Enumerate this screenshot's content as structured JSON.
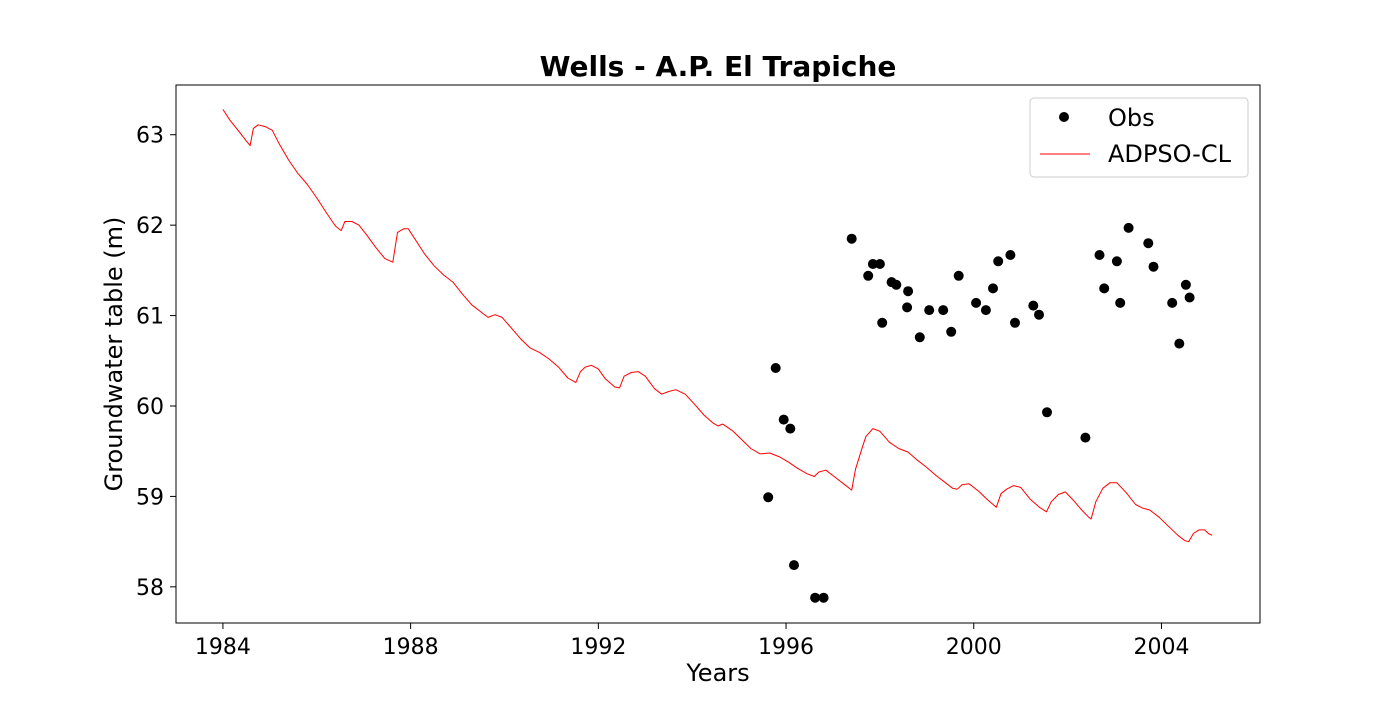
{
  "chart_data": {
    "type": "line",
    "title": "Wells - A.P. El Trapiche",
    "xlabel": "Years",
    "ylabel": "Groundwater table (m)",
    "xlim": [
      1983.0,
      2006.1
    ],
    "ylim": [
      57.6,
      63.55
    ],
    "x_ticks": [
      1984,
      1988,
      1992,
      1996,
      2000,
      2004
    ],
    "x_tick_labels": [
      "1984",
      "1988",
      "1992",
      "1996",
      "2000",
      "2004"
    ],
    "y_ticks": [
      58,
      59,
      60,
      61,
      62,
      63
    ],
    "y_tick_labels": [
      "58",
      "59",
      "60",
      "61",
      "62",
      "63"
    ],
    "legend": {
      "position": "upper right",
      "entries": [
        "Obs",
        "ADPSO-CL"
      ]
    },
    "colors": {
      "obs": "#000000",
      "sim": "#ff0000"
    },
    "grid": false,
    "series": [
      {
        "name": "Obs",
        "kind": "scatter",
        "points": [
          [
            1995.62,
            58.99
          ],
          [
            1995.78,
            60.42
          ],
          [
            1995.95,
            59.85
          ],
          [
            1996.09,
            59.75
          ],
          [
            1996.17,
            58.24
          ],
          [
            1996.62,
            57.88
          ],
          [
            1996.8,
            57.88
          ],
          [
            1997.4,
            61.85
          ],
          [
            1997.75,
            61.44
          ],
          [
            1997.85,
            61.57
          ],
          [
            1998.0,
            61.57
          ],
          [
            1998.05,
            60.92
          ],
          [
            1998.25,
            61.37
          ],
          [
            1998.35,
            61.34
          ],
          [
            1998.58,
            61.09
          ],
          [
            1998.6,
            61.27
          ],
          [
            1998.85,
            60.76
          ],
          [
            1999.05,
            61.06
          ],
          [
            1999.35,
            61.06
          ],
          [
            1999.52,
            60.82
          ],
          [
            1999.68,
            61.44
          ],
          [
            2000.05,
            61.14
          ],
          [
            2000.26,
            61.06
          ],
          [
            2000.41,
            61.3
          ],
          [
            2000.52,
            61.6
          ],
          [
            2000.78,
            61.67
          ],
          [
            2000.88,
            60.92
          ],
          [
            2001.27,
            61.11
          ],
          [
            2001.39,
            61.01
          ],
          [
            2001.56,
            59.93
          ],
          [
            2002.38,
            59.65
          ],
          [
            2002.68,
            61.67
          ],
          [
            2002.78,
            61.3
          ],
          [
            2003.05,
            61.6
          ],
          [
            2003.12,
            61.14
          ],
          [
            2003.3,
            61.97
          ],
          [
            2003.72,
            61.8
          ],
          [
            2003.83,
            61.54
          ],
          [
            2004.23,
            61.14
          ],
          [
            2004.38,
            60.69
          ],
          [
            2004.52,
            61.34
          ],
          [
            2004.6,
            61.2
          ]
        ]
      },
      {
        "name": "ADPSO-CL",
        "kind": "line",
        "points": [
          [
            1984.0,
            63.28
          ],
          [
            1984.15,
            63.16
          ],
          [
            1984.35,
            63.03
          ],
          [
            1984.5,
            62.93
          ],
          [
            1984.58,
            62.88
          ],
          [
            1984.65,
            63.07
          ],
          [
            1984.75,
            63.11
          ],
          [
            1984.9,
            63.09
          ],
          [
            1985.05,
            63.05
          ],
          [
            1985.2,
            62.9
          ],
          [
            1985.4,
            62.72
          ],
          [
            1985.6,
            62.57
          ],
          [
            1985.8,
            62.45
          ],
          [
            1986.0,
            62.3
          ],
          [
            1986.2,
            62.14
          ],
          [
            1986.4,
            61.99
          ],
          [
            1986.52,
            61.94
          ],
          [
            1986.6,
            62.04
          ],
          [
            1986.75,
            62.04
          ],
          [
            1986.9,
            62.0
          ],
          [
            1987.05,
            61.9
          ],
          [
            1987.25,
            61.76
          ],
          [
            1987.45,
            61.63
          ],
          [
            1987.62,
            61.59
          ],
          [
            1987.72,
            61.92
          ],
          [
            1987.85,
            61.96
          ],
          [
            1987.95,
            61.96
          ],
          [
            1988.1,
            61.84
          ],
          [
            1988.3,
            61.68
          ],
          [
            1988.5,
            61.55
          ],
          [
            1988.7,
            61.45
          ],
          [
            1988.9,
            61.37
          ],
          [
            1989.1,
            61.24
          ],
          [
            1989.3,
            61.12
          ],
          [
            1989.5,
            61.04
          ],
          [
            1989.65,
            60.98
          ],
          [
            1989.8,
            61.01
          ],
          [
            1989.95,
            60.98
          ],
          [
            1990.15,
            60.86
          ],
          [
            1990.35,
            60.74
          ],
          [
            1990.55,
            60.64
          ],
          [
            1990.75,
            60.59
          ],
          [
            1990.95,
            60.52
          ],
          [
            1991.15,
            60.43
          ],
          [
            1991.35,
            60.31
          ],
          [
            1991.52,
            60.26
          ],
          [
            1991.62,
            60.38
          ],
          [
            1991.72,
            60.43
          ],
          [
            1991.85,
            60.45
          ],
          [
            1992.0,
            60.41
          ],
          [
            1992.15,
            60.3
          ],
          [
            1992.35,
            60.21
          ],
          [
            1992.45,
            60.2
          ],
          [
            1992.55,
            60.33
          ],
          [
            1992.7,
            60.37
          ],
          [
            1992.85,
            60.38
          ],
          [
            1993.0,
            60.33
          ],
          [
            1993.2,
            60.19
          ],
          [
            1993.35,
            60.13
          ],
          [
            1993.5,
            60.16
          ],
          [
            1993.65,
            60.18
          ],
          [
            1993.85,
            60.13
          ],
          [
            1994.05,
            60.02
          ],
          [
            1994.25,
            59.9
          ],
          [
            1994.45,
            59.81
          ],
          [
            1994.55,
            59.78
          ],
          [
            1994.65,
            59.8
          ],
          [
            1994.85,
            59.73
          ],
          [
            1995.05,
            59.63
          ],
          [
            1995.25,
            59.53
          ],
          [
            1995.45,
            59.47
          ],
          [
            1995.65,
            59.48
          ],
          [
            1995.85,
            59.44
          ],
          [
            1996.05,
            59.38
          ],
          [
            1996.25,
            59.31
          ],
          [
            1996.45,
            59.25
          ],
          [
            1996.6,
            59.22
          ],
          [
            1996.7,
            59.27
          ],
          [
            1996.85,
            59.29
          ],
          [
            1997.05,
            59.21
          ],
          [
            1997.25,
            59.13
          ],
          [
            1997.4,
            59.07
          ],
          [
            1997.48,
            59.3
          ],
          [
            1997.6,
            59.5
          ],
          [
            1997.7,
            59.66
          ],
          [
            1997.85,
            59.75
          ],
          [
            1998.0,
            59.72
          ],
          [
            1998.2,
            59.6
          ],
          [
            1998.4,
            59.53
          ],
          [
            1998.6,
            59.49
          ],
          [
            1998.8,
            59.4
          ],
          [
            1999.0,
            59.32
          ],
          [
            1999.2,
            59.23
          ],
          [
            1999.4,
            59.15
          ],
          [
            1999.55,
            59.09
          ],
          [
            1999.65,
            59.08
          ],
          [
            1999.75,
            59.13
          ],
          [
            1999.9,
            59.14
          ],
          [
            2000.1,
            59.06
          ],
          [
            2000.3,
            58.96
          ],
          [
            2000.48,
            58.88
          ],
          [
            2000.58,
            59.03
          ],
          [
            2000.7,
            59.08
          ],
          [
            2000.85,
            59.12
          ],
          [
            2001.0,
            59.1
          ],
          [
            2001.2,
            58.97
          ],
          [
            2001.4,
            58.88
          ],
          [
            2001.55,
            58.83
          ],
          [
            2001.65,
            58.94
          ],
          [
            2001.8,
            59.02
          ],
          [
            2001.95,
            59.05
          ],
          [
            2002.1,
            58.97
          ],
          [
            2002.3,
            58.85
          ],
          [
            2002.45,
            58.77
          ],
          [
            2002.5,
            58.75
          ],
          [
            2002.6,
            58.94
          ],
          [
            2002.75,
            59.09
          ],
          [
            2002.9,
            59.15
          ],
          [
            2003.05,
            59.15
          ],
          [
            2003.25,
            59.04
          ],
          [
            2003.45,
            58.91
          ],
          [
            2003.6,
            58.87
          ],
          [
            2003.75,
            58.85
          ],
          [
            2003.95,
            58.77
          ],
          [
            2004.15,
            58.67
          ],
          [
            2004.35,
            58.57
          ],
          [
            2004.5,
            58.51
          ],
          [
            2004.58,
            58.5
          ],
          [
            2004.68,
            58.59
          ],
          [
            2004.8,
            58.63
          ],
          [
            2004.92,
            58.63
          ],
          [
            2005.0,
            58.59
          ],
          [
            2005.08,
            58.57
          ]
        ]
      }
    ]
  }
}
